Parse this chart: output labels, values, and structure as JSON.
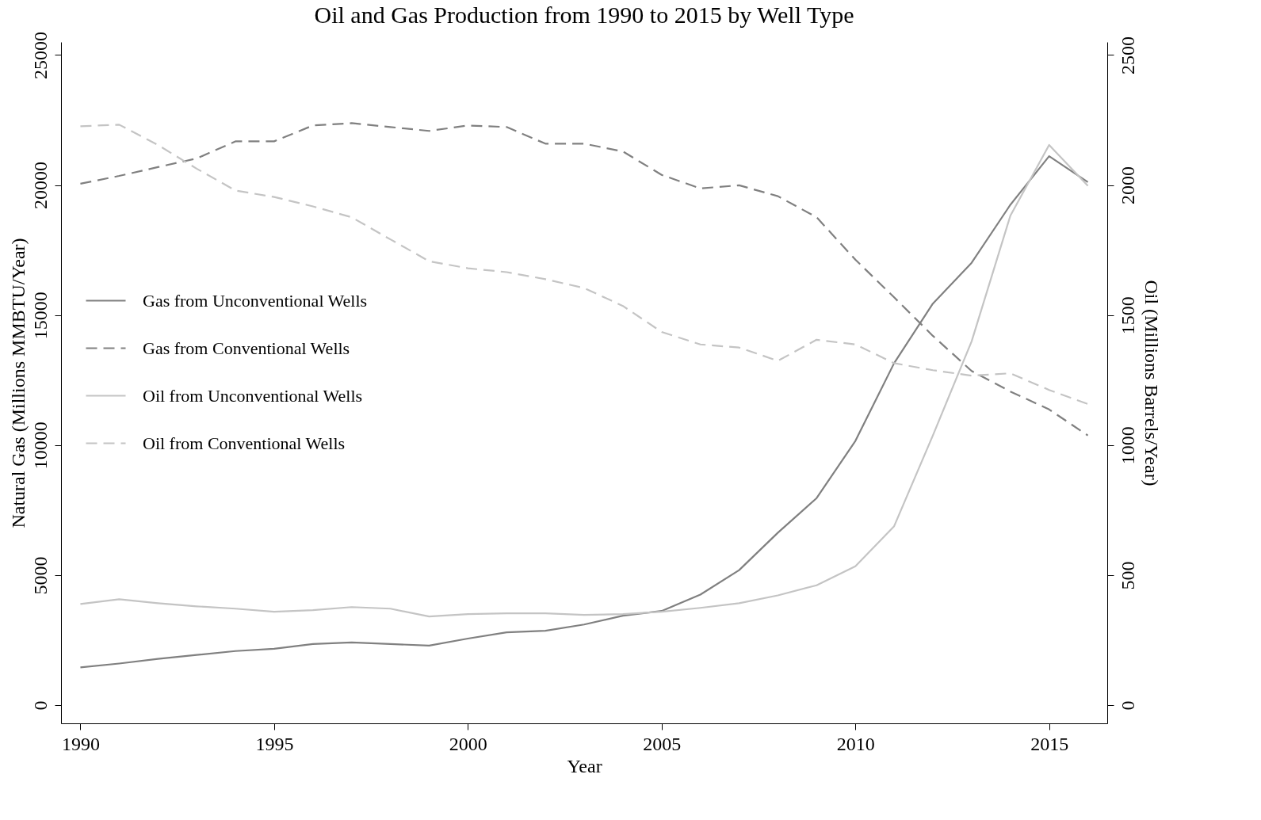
{
  "chart_data": {
    "type": "line",
    "title": "Oil and Gas Production from 1990 to 2015 by Well Type",
    "xlabel": "Year",
    "ylabel": "Natural Gas (Millions MMBTU/Year)",
    "y2label": "Oil (Millions Barrels/Year)",
    "x": [
      1990,
      1991,
      1992,
      1993,
      1994,
      1995,
      1996,
      1997,
      1998,
      1999,
      2000,
      2001,
      2002,
      2003,
      2004,
      2005,
      2006,
      2007,
      2008,
      2009,
      2010,
      2011,
      2012,
      2013,
      2014,
      2015,
      2016
    ],
    "series": [
      {
        "name": "Gas from Unconventional Wells",
        "color": "#808080",
        "line_style": "solid",
        "values": [
          1450,
          1600,
          1780,
          1930,
          2080,
          2170,
          2350,
          2410,
          2350,
          2290,
          2560,
          2800,
          2860,
          3100,
          3440,
          3620,
          4250,
          5190,
          6630,
          7960,
          10160,
          13150,
          15440,
          17010,
          19240,
          21110,
          20110
        ]
      },
      {
        "name": "Gas from Conventional Wells",
        "color": "#808080",
        "line_style": "dashed",
        "values": [
          20050,
          20350,
          20690,
          21020,
          21680,
          21680,
          22290,
          22380,
          22230,
          22080,
          22290,
          22230,
          21590,
          21590,
          21290,
          20390,
          19870,
          19990,
          19570,
          18760,
          17130,
          15680,
          14200,
          12850,
          12060,
          11370,
          10370
        ]
      },
      {
        "name": "Oil from Unconventional Wells",
        "color": "#c4c4c4",
        "line_style": "solid",
        "axis": "y2",
        "values": [
          389,
          407,
          392,
          380,
          371,
          359,
          365,
          377,
          371,
          341,
          350,
          353,
          353,
          347,
          350,
          359,
          374,
          392,
          422,
          461,
          534,
          688,
          1037,
          1399,
          1882,
          2154,
          1997
        ]
      },
      {
        "name": "Oil from Conventional Wells",
        "color": "#c4c4c4",
        "line_style": "dashed",
        "axis": "y2",
        "values": [
          2226,
          2232,
          2154,
          2063,
          1979,
          1954,
          1918,
          1876,
          1791,
          1707,
          1680,
          1665,
          1638,
          1604,
          1535,
          1435,
          1387,
          1375,
          1324,
          1405,
          1387,
          1315,
          1288,
          1267,
          1276,
          1212,
          1158
        ]
      }
    ],
    "xlim": [
      1989.5,
      2016.5
    ],
    "xticks": [
      1990,
      1995,
      2000,
      2005,
      2010,
      2015
    ],
    "ylim": [
      -700,
      25500
    ],
    "yticks": [
      0,
      5000,
      10000,
      15000,
      20000,
      25000
    ],
    "y2lim": [
      -70,
      2550
    ],
    "y2ticks": [
      0,
      500,
      1000,
      1500,
      2000,
      2500
    ],
    "grid": false,
    "legend": "left",
    "marker": "none"
  }
}
